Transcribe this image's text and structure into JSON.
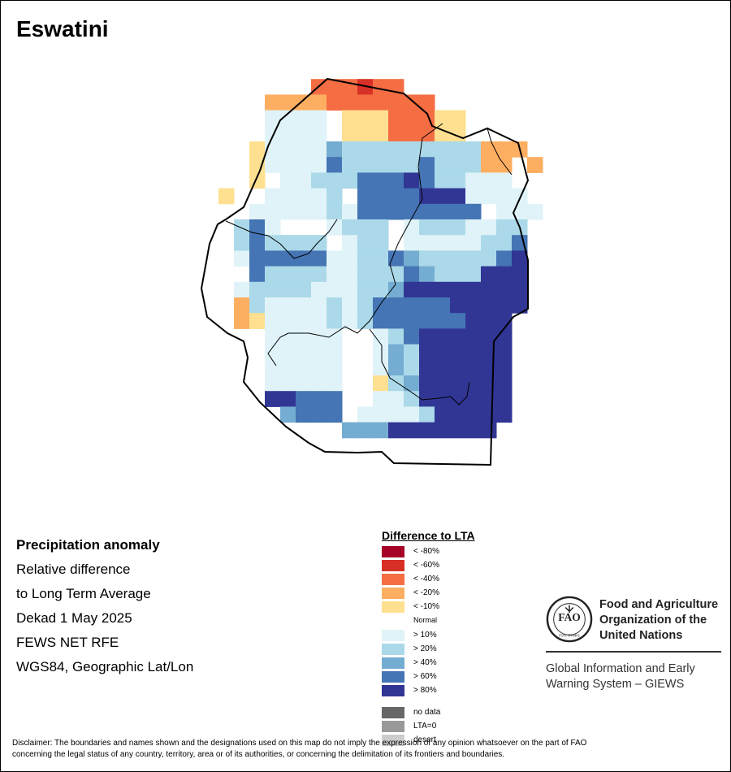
{
  "title": "Eswatini",
  "info": {
    "line1": "Precipitation anomaly",
    "line2": "Relative difference",
    "line3": "to Long Term Average",
    "line4": "Dekad 1 May 2025",
    "line5": "FEWS NET RFE",
    "line6": "WGS84, Geographic Lat/Lon"
  },
  "legend": {
    "title": "Difference to LTA",
    "normal_label": "Normal",
    "classes": [
      {
        "label": "< -80%",
        "color": "#a50026"
      },
      {
        "label": "< -60%",
        "color": "#d73027"
      },
      {
        "label": "< -40%",
        "color": "#f46d43"
      },
      {
        "label": "< -20%",
        "color": "#fdae61"
      },
      {
        "label": "< -10%",
        "color": "#fee090"
      },
      {
        "label": "> 10%",
        "color": "#e0f3f8"
      },
      {
        "label": "> 20%",
        "color": "#abd9e9"
      },
      {
        "label": "> 40%",
        "color": "#74add1"
      },
      {
        "label": "> 60%",
        "color": "#4575b4"
      },
      {
        "label": "> 80%",
        "color": "#313695"
      }
    ],
    "extra": [
      {
        "label": "no data",
        "color": "#666666"
      },
      {
        "label": "LTA=0",
        "color": "#999999"
      },
      {
        "label": "desert",
        "color": "#cccccc"
      }
    ]
  },
  "fao": {
    "name1": "Food and Agriculture",
    "name2": "Organization of the",
    "name3": "United Nations",
    "logo_letters": "FAO",
    "logo_motto": "FIAT PANIS",
    "giews1": "Global Information and Early",
    "giews2": "Warning System – GIEWS"
  },
  "disclaimer1": "Disclaimer: The boundaries and names shown and the designations used on this map do not imply the expression of any opinion whatsoever on the part of FAO",
  "disclaimer2": "concerning the legal status of any country, territory, area or of its authorities, or concerning the delimitation of its frontiers and boundaries.",
  "map_grid": {
    "anomaly_classes": "a=< -80%, b=< -60%, c=< -40%, d=< -20%, e=< -10%, .=Normal, f=> 10%, g=> 20%, h=> 40%, i=> 60%, j=> 80%",
    "rows": [
      "..........................",
      ".......cccbcc.............",
      "....ddddccccccc...........",
      "....ffff.eeecccee.........",
      "....ffff.eeecccee.........",
      "...effffhgggggggggddd.....",
      "...effffigggggigggdd.d....",
      "...e.ffgggiiijiggfff......",
      ".e..ffffg.iiiijjjffff.....",
      "...fffffgfiiiiiiii.fff....",
      "..gif...fggg.fgggffgg.....",
      "..gigggg.fgg.fffffggi.....",
      "..fiiiiiffggihgggggij.....",
      "...iggggffgggihgggjjj.....",
      "..fggggfffgghjjjjjjjj.....",
      "..dgffffgfgiiiiijjjjj.....",
      "..deffffgfgiiiiiijjj......",
      "....fffff..fgijjjjjj......",
      "....fffff..fhgjjjjjj......",
      "....fffff..fhgjjjjjj......",
      "....fffff..eghjjjjjj......",
      "....jjiii..ffgjjjjjj......",
      ".....hiii.ffffgjjjjj......",
      ".........hhhjjjjjjj......."
    ]
  }
}
